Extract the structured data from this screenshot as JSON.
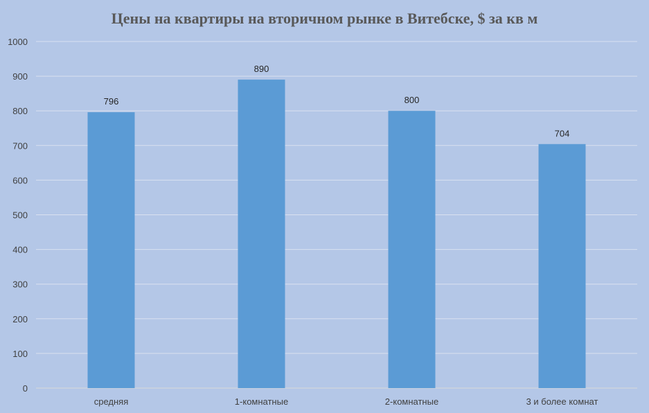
{
  "chart_data": {
    "type": "bar",
    "title": "Цены на квартиры на вторичном рынке в Витебске, $ за кв м",
    "categories": [
      "средняя",
      "1-комнатные",
      "2-комнатные",
      "3 и более комнат"
    ],
    "values": [
      796,
      890,
      800,
      704
    ],
    "data_labels": [
      "796",
      "890",
      "800",
      "704"
    ],
    "y_ticks": [
      "0",
      "100",
      "200",
      "300",
      "400",
      "500",
      "600",
      "700",
      "800",
      "900",
      "1000"
    ],
    "ylim": [
      0,
      1000
    ],
    "xlabel": "",
    "ylabel": "",
    "grid": true,
    "legend": "none",
    "colors": {
      "background": "#b4c7e7",
      "bar": "#5b9bd5",
      "gridline": "#d9e1f0",
      "axis": "#d9d9d9"
    }
  }
}
